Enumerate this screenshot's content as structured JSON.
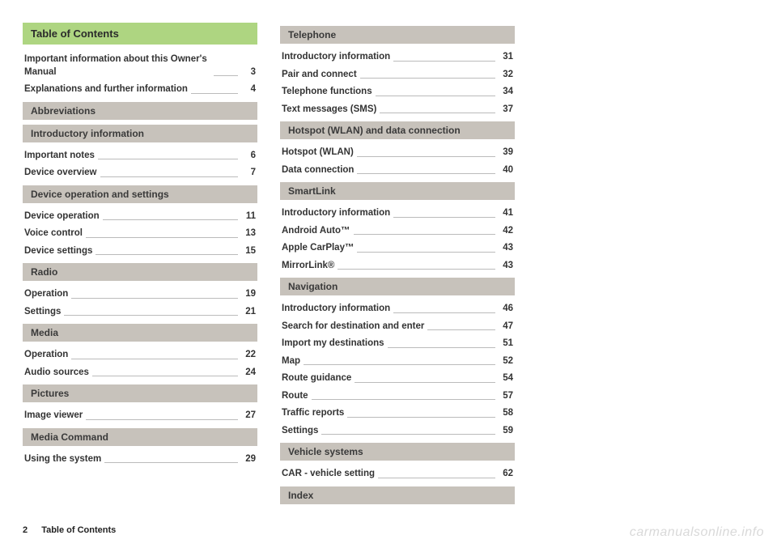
{
  "title": "Table of Contents",
  "footer": {
    "pageNumber": "2",
    "text": "Table of Contents"
  },
  "watermark": "carmanualsonline.info",
  "col1": {
    "preEntries": [
      {
        "label": "Important information about this Owner's Manual",
        "page": "3"
      },
      {
        "label": "Explanations and further information",
        "page": "4"
      }
    ],
    "sections": [
      {
        "header": "Abbreviations",
        "entries": []
      },
      {
        "header": "Introductory information",
        "entries": [
          {
            "label": "Important notes",
            "page": "6"
          },
          {
            "label": "Device overview",
            "page": "7"
          }
        ]
      },
      {
        "header": "Device operation and settings",
        "entries": [
          {
            "label": "Device operation",
            "page": "11"
          },
          {
            "label": "Voice control",
            "page": "13"
          },
          {
            "label": "Device settings",
            "page": "15"
          }
        ]
      },
      {
        "header": "Radio",
        "entries": [
          {
            "label": "Operation",
            "page": "19"
          },
          {
            "label": "Settings",
            "page": "21"
          }
        ]
      },
      {
        "header": "Media",
        "entries": [
          {
            "label": "Operation",
            "page": "22"
          },
          {
            "label": "Audio sources",
            "page": "24"
          }
        ]
      },
      {
        "header": "Pictures",
        "entries": [
          {
            "label": "Image viewer",
            "page": "27"
          }
        ]
      },
      {
        "header": "Media Command",
        "entries": [
          {
            "label": "Using the system",
            "page": "29"
          }
        ]
      }
    ]
  },
  "col2": {
    "sections": [
      {
        "header": "Telephone",
        "entries": [
          {
            "label": "Introductory information",
            "page": "31"
          },
          {
            "label": "Pair and connect",
            "page": "32"
          },
          {
            "label": "Telephone functions",
            "page": "34"
          },
          {
            "label": "Text messages (SMS)",
            "page": "37"
          }
        ]
      },
      {
        "header": "Hotspot (WLAN) and data connection",
        "entries": [
          {
            "label": "Hotspot (WLAN)",
            "page": "39"
          },
          {
            "label": "Data connection",
            "page": "40"
          }
        ]
      },
      {
        "header": "SmartLink",
        "entries": [
          {
            "label": "Introductory information",
            "page": "41"
          },
          {
            "label": "Android Auto™",
            "page": "42"
          },
          {
            "label": "Apple CarPlay™",
            "page": "43"
          },
          {
            "label": "MirrorLink®",
            "page": "43"
          }
        ]
      },
      {
        "header": "Navigation",
        "entries": [
          {
            "label": "Introductory information",
            "page": "46"
          },
          {
            "label": "Search for destination and enter",
            "page": "47"
          },
          {
            "label": "Import my destinations",
            "page": "51"
          },
          {
            "label": "Map",
            "page": "52"
          },
          {
            "label": "Route guidance",
            "page": "54"
          },
          {
            "label": "Route",
            "page": "57"
          },
          {
            "label": "Traffic reports",
            "page": "58"
          },
          {
            "label": "Settings",
            "page": "59"
          }
        ]
      },
      {
        "header": "Vehicle systems",
        "entries": [
          {
            "label": "CAR - vehicle setting",
            "page": "62"
          }
        ]
      },
      {
        "header": "Index",
        "entries": []
      }
    ]
  }
}
